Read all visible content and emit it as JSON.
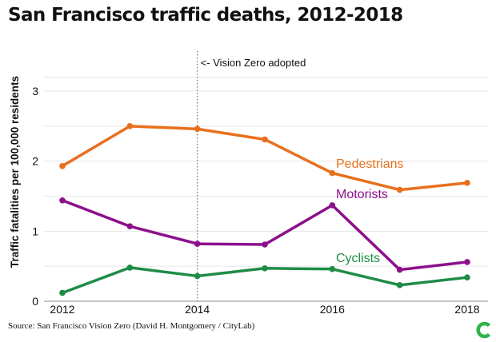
{
  "title": "San Francisco traffic deaths, 2012-2018",
  "source": "Source: San Francisco Vision Zero (David H. Montgomery / CityLab)",
  "chart_data": {
    "type": "line",
    "title": "San Francisco traffic deaths, 2012-2018",
    "xlabel": "",
    "ylabel": "Traffic fatalities per 100,000 residents",
    "x": [
      2012,
      2013,
      2014,
      2015,
      2016,
      2017,
      2018
    ],
    "xlim": [
      2012,
      2018
    ],
    "ylim": [
      0,
      3.3
    ],
    "xticks": [
      "2012",
      "2014",
      "2016",
      "2018"
    ],
    "yticks": [
      "0",
      "1",
      "2",
      "3"
    ],
    "grid": true,
    "series": [
      {
        "name": "Pedestrians",
        "color": "#e8701c",
        "values": [
          1.93,
          2.5,
          2.46,
          2.31,
          1.83,
          1.59,
          1.69
        ]
      },
      {
        "name": "Motorists",
        "color": "#8c108c",
        "values": [
          1.44,
          1.07,
          0.82,
          0.81,
          1.37,
          0.45,
          0.56
        ]
      },
      {
        "name": "Cyclists",
        "color": "#1e8c46",
        "values": [
          0.12,
          0.48,
          0.36,
          0.47,
          0.46,
          0.23,
          0.34
        ]
      }
    ],
    "annotations": [
      {
        "x": 2014,
        "text": "<- Vision Zero adopted",
        "style": "dotted-vertical-line"
      }
    ]
  }
}
